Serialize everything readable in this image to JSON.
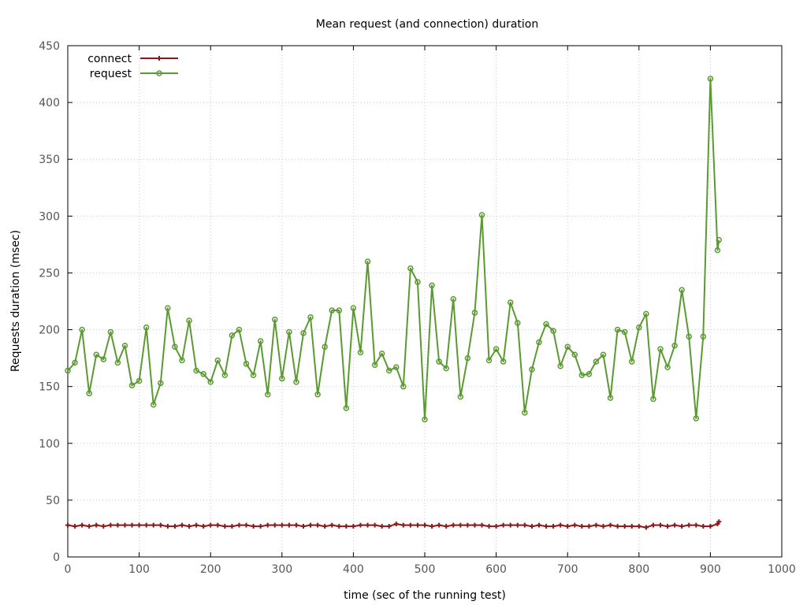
{
  "chart_data": {
    "type": "line",
    "title": "Mean request (and connection) duration",
    "xlabel": "time (sec of the running test)",
    "ylabel": "Requests duration (msec)",
    "xlim": [
      0,
      1000
    ],
    "ylim": [
      0,
      450
    ],
    "x_ticks": [
      0,
      100,
      200,
      300,
      400,
      500,
      600,
      700,
      800,
      900,
      1000
    ],
    "y_ticks": [
      0,
      50,
      100,
      150,
      200,
      250,
      300,
      350,
      400,
      450
    ],
    "grid": true,
    "legend_position": "top-left",
    "series": [
      {
        "name": "connect",
        "color": "#8b1a1a",
        "marker": "plus",
        "x": [
          0,
          10,
          20,
          30,
          40,
          50,
          60,
          70,
          80,
          90,
          100,
          110,
          120,
          130,
          140,
          150,
          160,
          170,
          180,
          190,
          200,
          210,
          220,
          230,
          240,
          250,
          260,
          270,
          280,
          290,
          300,
          310,
          320,
          330,
          340,
          350,
          360,
          370,
          380,
          390,
          400,
          410,
          420,
          430,
          440,
          450,
          460,
          470,
          480,
          490,
          500,
          510,
          520,
          530,
          540,
          550,
          560,
          570,
          580,
          590,
          600,
          610,
          620,
          630,
          640,
          650,
          660,
          670,
          680,
          690,
          700,
          710,
          720,
          730,
          740,
          750,
          760,
          770,
          780,
          790,
          800,
          810,
          820,
          830,
          840,
          850,
          860,
          870,
          880,
          890,
          900,
          910,
          912
        ],
        "y": [
          28,
          27,
          28,
          27,
          28,
          27,
          28,
          28,
          28,
          28,
          28,
          28,
          28,
          28,
          27,
          27,
          28,
          27,
          28,
          27,
          28,
          28,
          27,
          27,
          28,
          28,
          27,
          27,
          28,
          28,
          28,
          28,
          28,
          27,
          28,
          28,
          27,
          28,
          27,
          27,
          27,
          28,
          28,
          28,
          27,
          27,
          29,
          28,
          28,
          28,
          28,
          27,
          28,
          27,
          28,
          28,
          28,
          28,
          28,
          27,
          27,
          28,
          28,
          28,
          28,
          27,
          28,
          27,
          27,
          28,
          27,
          28,
          27,
          27,
          28,
          27,
          28,
          27,
          27,
          27,
          27,
          26,
          28,
          28,
          27,
          28,
          27,
          28,
          28,
          27,
          27,
          29,
          31
        ]
      },
      {
        "name": "request",
        "color": "#5a9a31",
        "marker": "circle",
        "x": [
          0,
          10,
          20,
          30,
          40,
          50,
          60,
          70,
          80,
          90,
          100,
          110,
          120,
          130,
          140,
          150,
          160,
          170,
          180,
          190,
          200,
          210,
          220,
          230,
          240,
          250,
          260,
          270,
          280,
          290,
          300,
          310,
          320,
          330,
          340,
          350,
          360,
          370,
          380,
          390,
          400,
          410,
          420,
          430,
          440,
          450,
          460,
          470,
          480,
          490,
          500,
          510,
          520,
          530,
          540,
          550,
          560,
          570,
          580,
          590,
          600,
          610,
          620,
          630,
          640,
          650,
          660,
          670,
          680,
          690,
          700,
          710,
          720,
          730,
          740,
          750,
          760,
          770,
          780,
          790,
          800,
          810,
          820,
          830,
          840,
          850,
          860,
          870,
          880,
          890,
          900,
          910,
          912
        ],
        "y": [
          164,
          171,
          200,
          144,
          178,
          174,
          198,
          171,
          186,
          151,
          155,
          202,
          134,
          153,
          219,
          185,
          173,
          208,
          164,
          161,
          154,
          173,
          160,
          195,
          200,
          170,
          160,
          190,
          143,
          209,
          157,
          198,
          154,
          197,
          211,
          143,
          185,
          217,
          217,
          131,
          219,
          180,
          260,
          169,
          179,
          164,
          167,
          150,
          254,
          242,
          121,
          239,
          172,
          166,
          227,
          141,
          175,
          215,
          301,
          173,
          183,
          172,
          224,
          206,
          127,
          165,
          189,
          205,
          199,
          168,
          185,
          178,
          160,
          161,
          172,
          178,
          140,
          200,
          198,
          172,
          202,
          214,
          139,
          183,
          167,
          186,
          235,
          194,
          122,
          194,
          421,
          270,
          279
        ]
      }
    ]
  }
}
